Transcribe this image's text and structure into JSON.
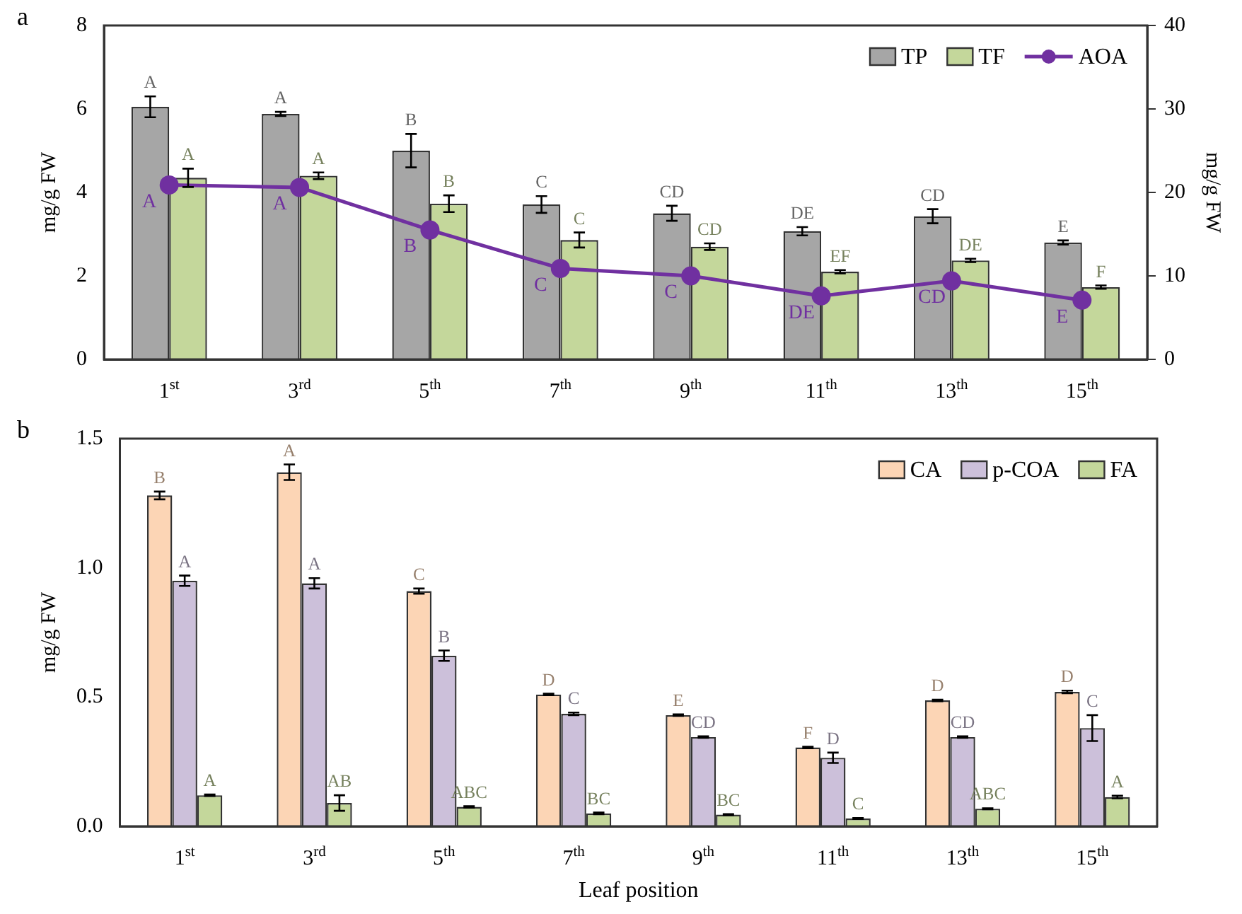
{
  "chart_data": [
    {
      "type": "bar",
      "title": "a",
      "ylabel": "mg/g FW",
      "y2label": "mg/g FW",
      "categories": [
        "1$^{st}$",
        "3$^{rd}$",
        "5$^{th}$",
        "7$^{th}$",
        "9$^{th}$",
        "11$^{th}$",
        "13$^{th}$",
        "15$^{th}$"
      ],
      "series": [
        {
          "name": "TP",
          "type": "bar",
          "color": "#a6a6a6",
          "values": [
            6.05,
            5.88,
            5.0,
            3.71,
            3.5,
            3.07,
            3.43,
            2.8
          ],
          "errors": [
            0.25,
            0.05,
            0.4,
            0.2,
            0.18,
            0.1,
            0.17,
            0.05
          ],
          "value_labels": [
            "A",
            "A",
            "B",
            "C",
            "CD",
            "DE",
            "CD",
            "E"
          ]
        },
        {
          "name": "TF",
          "type": "bar",
          "color": "#c4d79b",
          "values": [
            4.35,
            4.4,
            3.73,
            2.86,
            2.7,
            2.1,
            2.37,
            1.73
          ],
          "errors": [
            0.22,
            0.08,
            0.2,
            0.18,
            0.08,
            0.04,
            0.04,
            0.04
          ],
          "value_labels": [
            "A",
            "A",
            "B",
            "C",
            "CD",
            "EF",
            "DE",
            "F"
          ]
        },
        {
          "name": "AOA",
          "type": "line",
          "axis": "y2",
          "color": "#7030a0",
          "values": [
            20.9,
            20.6,
            15.5,
            10.9,
            10.0,
            7.6,
            9.4,
            7.1
          ],
          "value_labels": [
            "A",
            "A",
            "B",
            "C",
            "C",
            "DE",
            "CD",
            "E"
          ]
        }
      ],
      "ylim": [
        0,
        8
      ],
      "yticks": [
        0,
        2,
        4,
        6,
        8
      ],
      "y2lim": [
        0,
        40
      ],
      "y2ticks": [
        0,
        10,
        20,
        30,
        40
      ],
      "legend": "top right",
      "marker": "circle"
    },
    {
      "type": "bar",
      "title": "b",
      "xlabel": "Leaf position",
      "ylabel": "mg/g FW",
      "categories": [
        "1$^{st}$",
        "3$^{rd}$",
        "5$^{th}$",
        "7$^{th}$",
        "9$^{th}$",
        "11$^{th}$",
        "13$^{th}$",
        "15$^{th}$"
      ],
      "series": [
        {
          "name": "CA",
          "color": "#fcd5b5",
          "values": [
            1.28,
            1.37,
            0.91,
            0.51,
            0.43,
            0.305,
            0.487,
            0.52
          ],
          "errors": [
            0.015,
            0.03,
            0.01,
            0.003,
            0.003,
            0.003,
            0.003,
            0.005
          ],
          "value_labels": [
            "B",
            "A",
            "C",
            "D",
            "E",
            "F",
            "D",
            "D"
          ]
        },
        {
          "name": "p-COA",
          "color": "#ccc0da",
          "values": [
            0.95,
            0.94,
            0.66,
            0.435,
            0.345,
            0.265,
            0.345,
            0.38
          ],
          "errors": [
            0.02,
            0.02,
            0.02,
            0.005,
            0.003,
            0.02,
            0.003,
            0.05
          ],
          "value_labels": [
            "A",
            "A",
            "B",
            "C",
            "CD",
            "D",
            "CD",
            "C"
          ]
        },
        {
          "name": "FA",
          "color": "#c4d79b",
          "values": [
            0.12,
            0.09,
            0.075,
            0.05,
            0.045,
            0.03,
            0.068,
            0.113
          ],
          "errors": [
            0.003,
            0.03,
            0.003,
            0.003,
            0.002,
            0.002,
            0.002,
            0.005
          ],
          "value_labels": [
            "A",
            "AB",
            "ABC",
            "BC",
            "BC",
            "C",
            "ABC",
            "A"
          ]
        }
      ],
      "ylim": [
        0,
        1.5
      ],
      "yticks": [
        {
          "value": 0,
          "label": "0.0"
        },
        {
          "value": 0.5,
          "label": "0.5"
        },
        {
          "value": 1,
          "label": "1.0"
        },
        {
          "value": 1.5,
          "label": "1.5"
        }
      ],
      "legend": "top right"
    }
  ]
}
